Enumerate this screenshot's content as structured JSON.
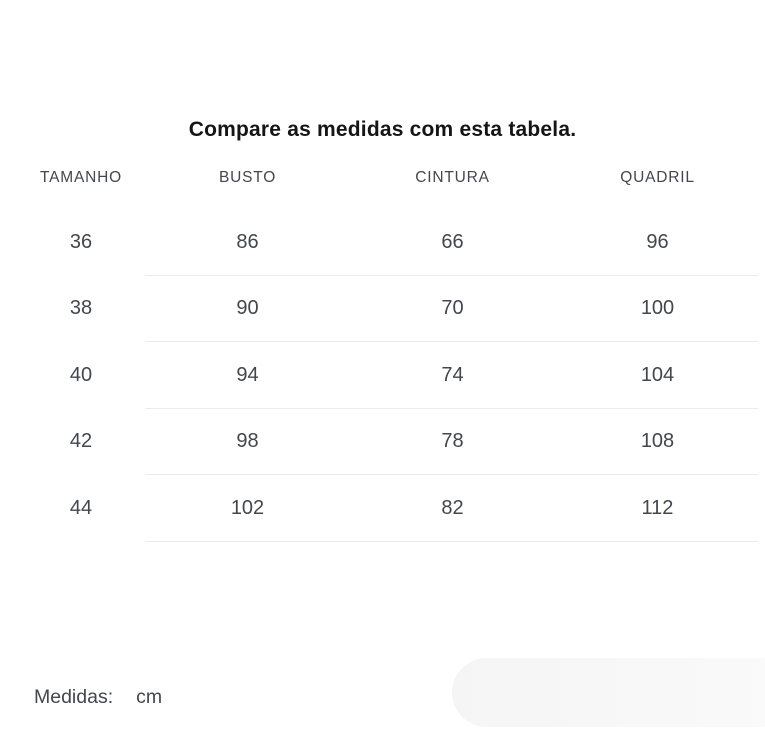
{
  "title": "Compare as medidas com esta tabela.",
  "table": {
    "headers": [
      "TAMANHO",
      "BUSTO",
      "CINTURA",
      "QUADRIL"
    ],
    "rows": [
      [
        "36",
        "86",
        "66",
        "96"
      ],
      [
        "38",
        "90",
        "70",
        "100"
      ],
      [
        "40",
        "94",
        "74",
        "104"
      ],
      [
        "42",
        "98",
        "78",
        "108"
      ],
      [
        "44",
        "102",
        "82",
        "112"
      ]
    ]
  },
  "footer": {
    "label": "Medidas:",
    "value": "cm"
  },
  "colors": {
    "background": "#ffffff",
    "title": "#151515",
    "text": "#43474b",
    "divider": "#ebebeb",
    "pill": "#f5f5f5"
  }
}
